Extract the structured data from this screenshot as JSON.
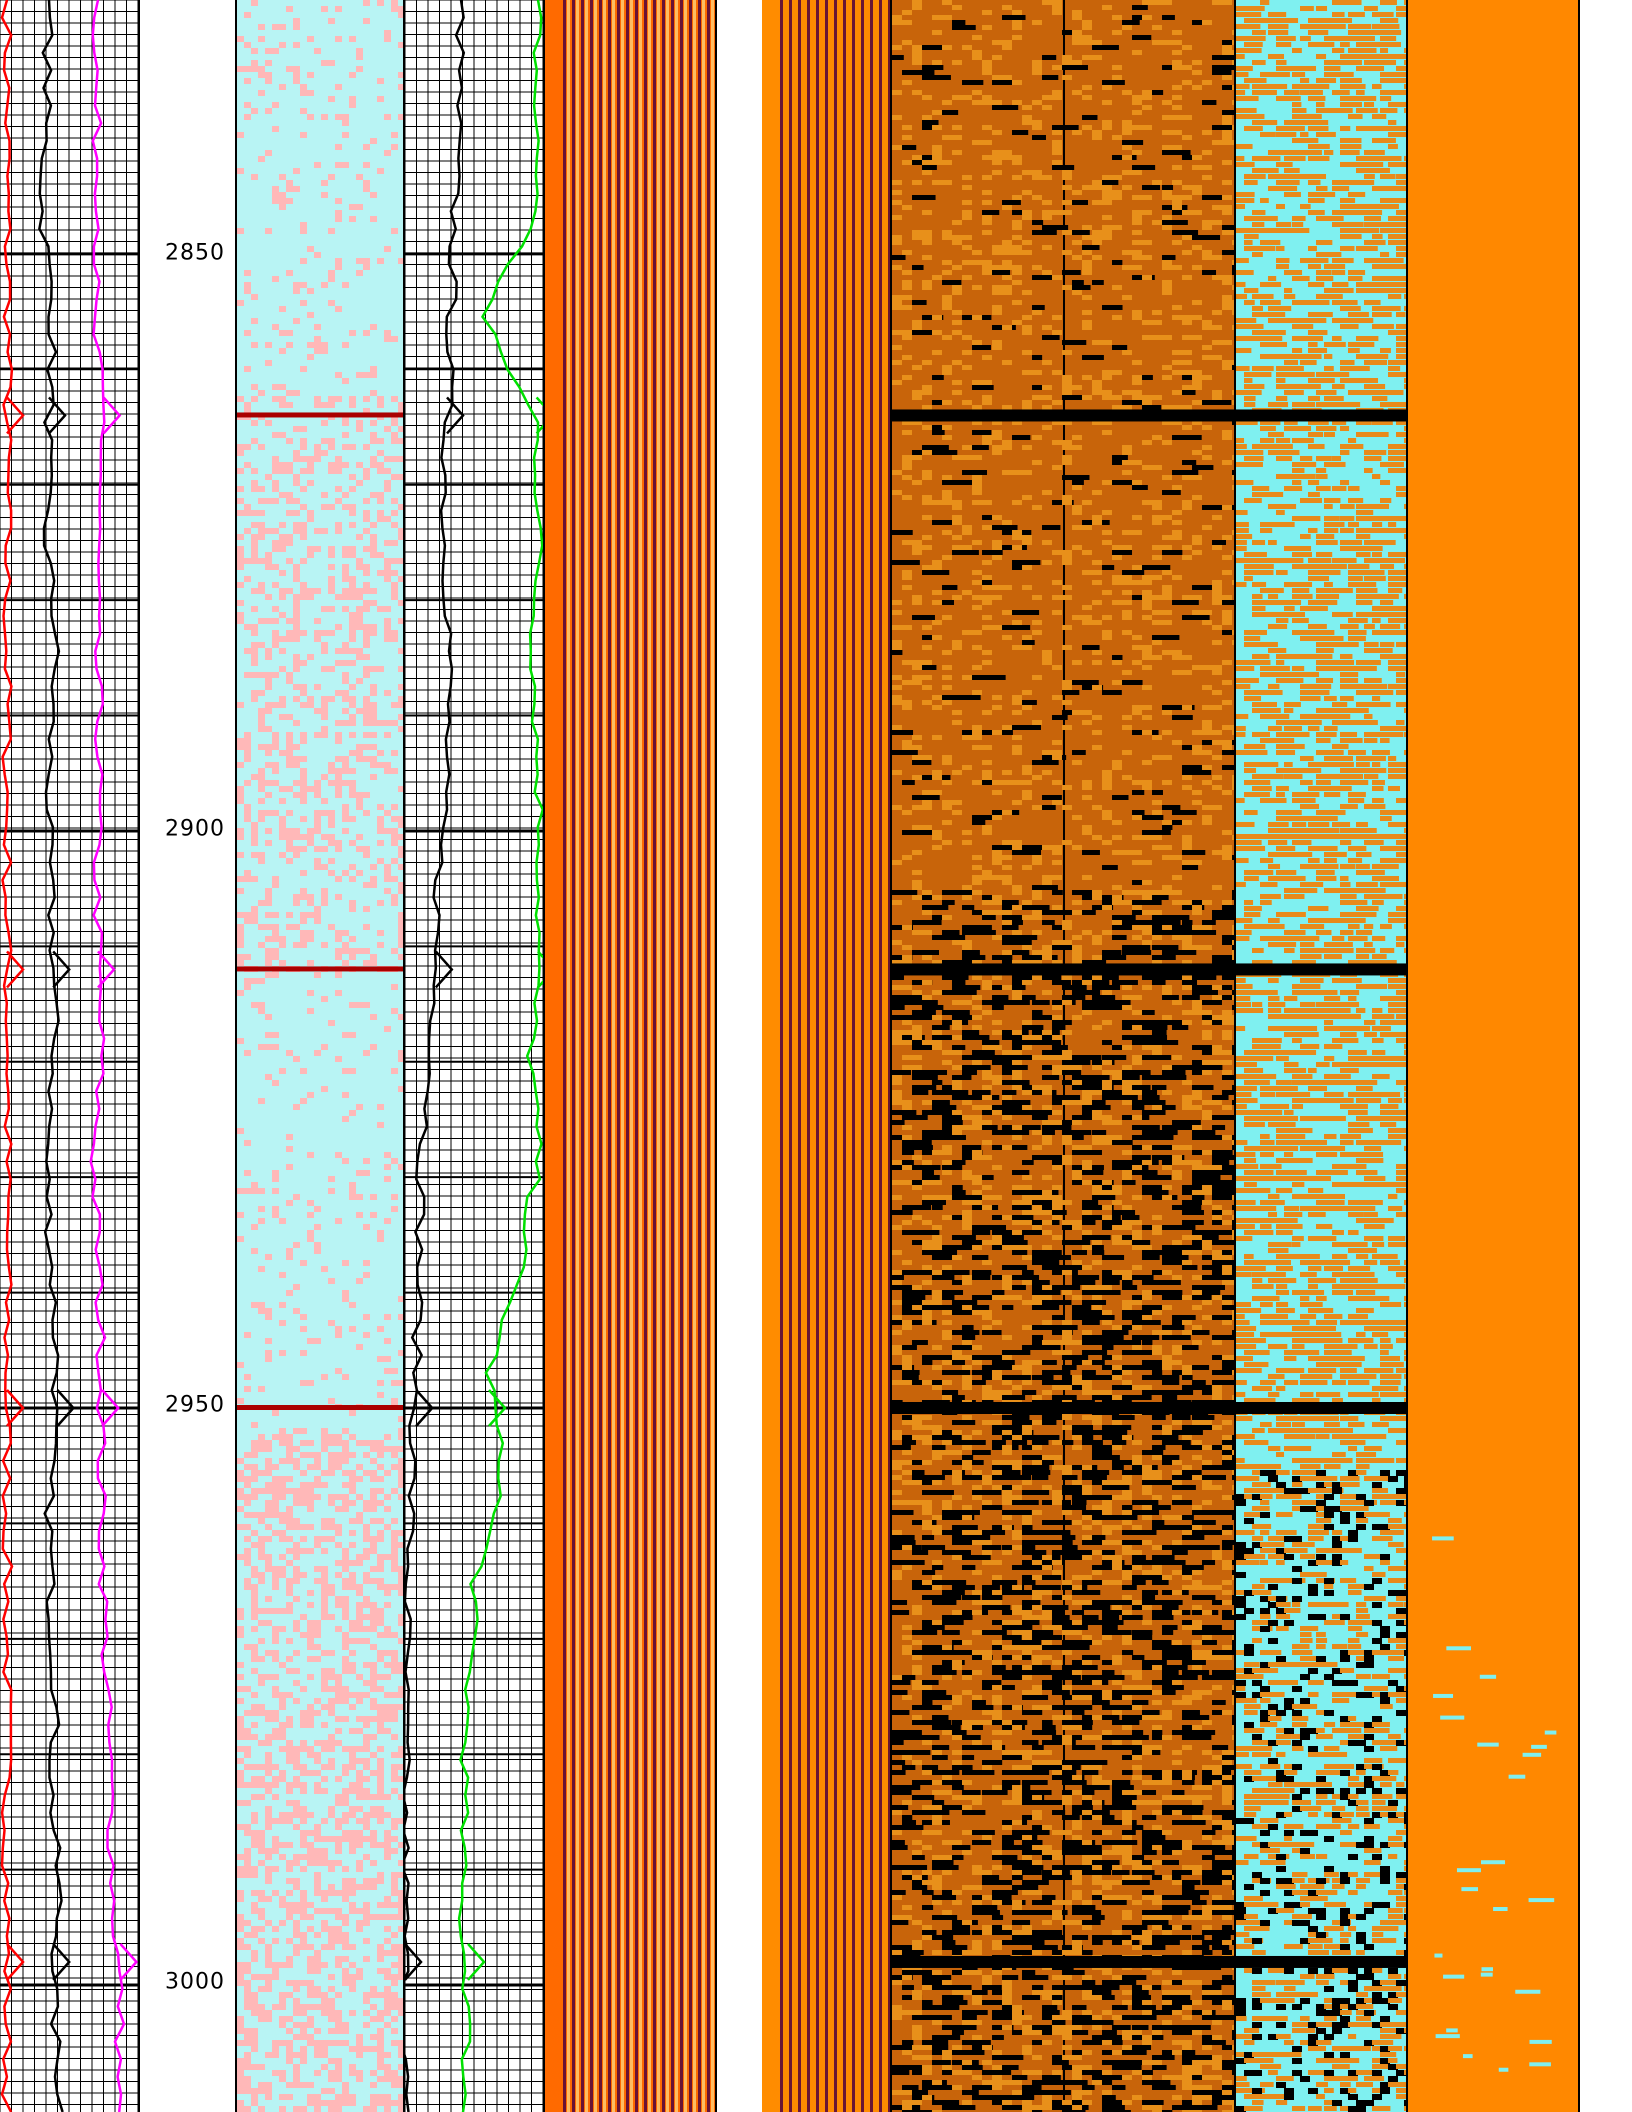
{
  "chart_data": {
    "type": "well-log",
    "depth_axis": {
      "unit_ticks": [
        2850,
        2900,
        2950,
        3000
      ],
      "labels": [
        "2850",
        "2900",
        "2950",
        "3000"
      ],
      "range": [
        2828,
        3011
      ]
    },
    "tracks": [
      {
        "name": "",
        "kind": "curves",
        "grid": true,
        "curves": [
          {
            "color": "#ff0000",
            "values": [
              0.05,
              0.05,
              0.05,
              0.06,
              0.05,
              0.05,
              0.05,
              0.05,
              0.05,
              0.05,
              0.06,
              0.05,
              0.05,
              0.05,
              0.05,
              0.05,
              0.05,
              0.05,
              0.05,
              0.05,
              0.05
            ]
          },
          {
            "color": "#000000",
            "values": [
              0.35,
              0.33,
              0.3,
              0.38,
              0.35,
              0.32,
              0.4,
              0.36,
              0.34,
              0.38,
              0.39,
              0.33,
              0.37,
              0.41,
              0.35,
              0.36,
              0.4,
              0.37,
              0.42,
              0.38,
              0.44
            ]
          },
          {
            "color": "#ff00ff",
            "values": [
              0.7,
              0.68,
              0.72,
              0.66,
              0.74,
              0.7,
              0.68,
              0.71,
              0.69,
              0.7,
              0.72,
              0.67,
              0.7,
              0.73,
              0.72,
              0.74,
              0.76,
              0.79,
              0.81,
              0.86,
              0.84
            ]
          }
        ]
      },
      {
        "name": "",
        "kind": "image",
        "palette": [
          "#b8f4f4",
          "#ffb8b8"
        ]
      },
      {
        "name": "",
        "kind": "curves",
        "grid": true,
        "curves": [
          {
            "color": "#000000",
            "values": [
              0.4,
              0.38,
              0.35,
              0.33,
              0.3,
              0.28,
              0.32,
              0.3,
              0.25,
              0.22,
              0.2,
              0.12,
              0.1,
              0.08,
              0.05,
              0.02,
              0.0,
              0.0,
              0.0,
              0.0,
              0.0
            ]
          },
          {
            "color": "#00e000",
            "values": [
              0.95,
              0.93,
              0.95,
              0.55,
              0.94,
              0.96,
              0.92,
              0.94,
              0.97,
              0.95,
              0.9,
              0.95,
              0.82,
              0.6,
              0.7,
              0.5,
              0.45,
              0.42,
              0.4,
              0.45,
              0.42
            ]
          }
        ]
      },
      {
        "name": "",
        "kind": "waveform",
        "palette": [
          "#ff6a00",
          "#5a0a3a",
          "#ffd27a"
        ]
      },
      {
        "name": "",
        "kind": "waveform",
        "palette": [
          "#fffbe0",
          "#5a0a3a",
          "#ff8c00"
        ]
      },
      {
        "name": "",
        "kind": "image",
        "palette": [
          "#c8640a",
          "#e8901a",
          "#000000"
        ]
      },
      {
        "name": "",
        "kind": "image",
        "palette": [
          "#7ff0f0",
          "#e88a1a",
          "#000000"
        ]
      },
      {
        "name": "",
        "kind": "image",
        "palette": [
          "#ff8800",
          "#7ff0f0"
        ]
      }
    ],
    "events": [
      2864,
      2912,
      2950,
      2998
    ]
  }
}
